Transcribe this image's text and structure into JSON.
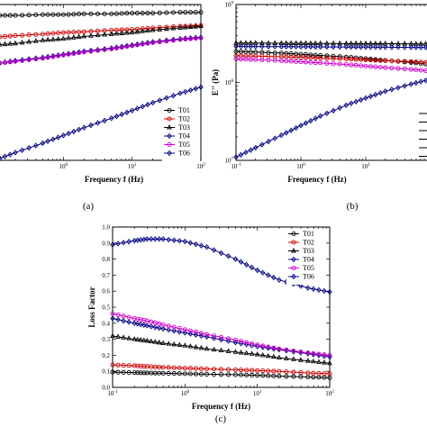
{
  "chart_data": [
    {
      "id": "a",
      "type": "line",
      "caption": "(a)",
      "xlabel": "Frequency f (Hz)",
      "ylabel": "",
      "x_scale": "log",
      "xlim": [
        0.1,
        100
      ],
      "xtick_labels": [
        {
          "base": "10",
          "exp": "0"
        },
        {
          "base": "10",
          "exp": "1"
        },
        {
          "base": "10",
          "exp": "2"
        }
      ],
      "x": [
        0.1,
        0.2,
        0.5,
        1,
        2,
        5,
        10,
        20,
        50,
        100
      ],
      "legend": "lower-right",
      "series": [
        {
          "name": "T01",
          "color": "#000000",
          "marker": "circle",
          "values": [
            0.93,
            0.93,
            0.935,
            0.935,
            0.94,
            0.94,
            0.945,
            0.945,
            0.95,
            0.95
          ]
        },
        {
          "name": "T02",
          "color": "#cc0000",
          "marker": "circle",
          "values": [
            0.79,
            0.8,
            0.81,
            0.82,
            0.825,
            0.835,
            0.84,
            0.85,
            0.86,
            0.865
          ]
        },
        {
          "name": "T03",
          "color": "#000000",
          "marker": "triangle",
          "values": [
            0.74,
            0.75,
            0.77,
            0.78,
            0.795,
            0.81,
            0.82,
            0.835,
            0.85,
            0.86
          ]
        },
        {
          "name": "T04",
          "color": "#000080",
          "marker": "diamond",
          "values": [
            0.62,
            0.64,
            0.66,
            0.68,
            0.7,
            0.72,
            0.74,
            0.76,
            0.78,
            0.79
          ]
        },
        {
          "name": "T05",
          "color": "#cc00cc",
          "marker": "circle",
          "values": [
            0.62,
            0.635,
            0.655,
            0.675,
            0.695,
            0.715,
            0.735,
            0.755,
            0.775,
            0.785
          ]
        },
        {
          "name": "T06",
          "color": "#000080",
          "marker": "diamond",
          "values": [
            0.0,
            0.05,
            0.11,
            0.16,
            0.21,
            0.27,
            0.32,
            0.37,
            0.43,
            0.47
          ]
        }
      ]
    },
    {
      "id": "b",
      "type": "line",
      "caption": "(b)",
      "xlabel": "Frequency f (Hz)",
      "ylabel": "E'' (Pa)",
      "x_scale": "log",
      "y_scale": "log",
      "xlim": [
        0.1,
        100
      ],
      "ylim": [
        10000000,
        1000000000
      ],
      "xtick_labels": [
        {
          "base": "10",
          "exp": "-1"
        },
        {
          "base": "10",
          "exp": "0"
        },
        {
          "base": "10",
          "exp": "1"
        }
      ],
      "ytick_labels": [
        {
          "base": "10",
          "exp": "7"
        },
        {
          "base": "10",
          "exp": "8"
        },
        {
          "base": "10",
          "exp": "9"
        }
      ],
      "x": [
        0.1,
        0.2,
        0.5,
        1,
        2,
        5,
        10,
        20,
        50,
        100
      ],
      "series": [
        {
          "color": "#000000",
          "marker": "circle",
          "values": [
            250000000,
            245000000,
            238000000,
            230000000,
            222000000,
            212000000,
            202000000,
            192000000,
            180000000,
            170000000
          ]
        },
        {
          "color": "#cc0000",
          "marker": "circle",
          "values": [
            220000000,
            218000000,
            214000000,
            210000000,
            205000000,
            200000000,
            195000000,
            190000000,
            185000000,
            180000000
          ]
        },
        {
          "color": "#000000",
          "marker": "triangle",
          "values": [
            320000000,
            320000000,
            318000000,
            318000000,
            316000000,
            315000000,
            315000000,
            314000000,
            313000000,
            312000000
          ]
        },
        {
          "color": "#000080",
          "marker": "diamond",
          "values": [
            290000000,
            289000000,
            288000000,
            287000000,
            286000000,
            285000000,
            284000000,
            283000000,
            282000000,
            281000000
          ]
        },
        {
          "color": "#cc00cc",
          "marker": "circle",
          "values": [
            200000000,
            196000000,
            190000000,
            184000000,
            178000000,
            170000000,
            162000000,
            155000000,
            147000000,
            140000000
          ]
        },
        {
          "color": "#000080",
          "marker": "diamond",
          "values": [
            11000000,
            14500000,
            21000000,
            28000000,
            37000000,
            51000000,
            63000000,
            77000000,
            95000000,
            110000000
          ]
        }
      ]
    },
    {
      "id": "c",
      "type": "line",
      "caption": "(c)",
      "xlabel": "Frequency f (Hz)",
      "ylabel": "Loss Factor",
      "x_scale": "log",
      "xlim": [
        0.1,
        100
      ],
      "ylim": [
        0.0,
        1.0
      ],
      "xtick_labels": [
        {
          "base": "10",
          "exp": "-1"
        },
        {
          "base": "10",
          "exp": "0"
        },
        {
          "base": "10",
          "exp": "1"
        },
        {
          "base": "10",
          "exp": "2"
        }
      ],
      "ytick_labels": [
        "0.0",
        "0.1",
        "0.2",
        "0.3",
        "0.4",
        "0.5",
        "0.6",
        "0.7",
        "0.8",
        "0.9",
        "1.0"
      ],
      "x": [
        0.1,
        0.2,
        0.3,
        0.5,
        1,
        2,
        5,
        10,
        20,
        50,
        100
      ],
      "legend": "top-right",
      "series": [
        {
          "name": "T01",
          "color": "#000000",
          "marker": "circle",
          "values": [
            0.095,
            0.092,
            0.09,
            0.088,
            0.085,
            0.082,
            0.079,
            0.075,
            0.07,
            0.065,
            0.06
          ]
        },
        {
          "name": "T02",
          "color": "#cc0000",
          "marker": "circle",
          "values": [
            0.14,
            0.135,
            0.13,
            0.125,
            0.12,
            0.115,
            0.11,
            0.105,
            0.1,
            0.09,
            0.085
          ]
        },
        {
          "name": "T03",
          "color": "#000000",
          "marker": "triangle",
          "values": [
            0.32,
            0.3,
            0.29,
            0.275,
            0.26,
            0.24,
            0.22,
            0.205,
            0.185,
            0.165,
            0.15
          ]
        },
        {
          "name": "T04",
          "color": "#000080",
          "marker": "diamond",
          "values": [
            0.43,
            0.4,
            0.385,
            0.365,
            0.34,
            0.315,
            0.28,
            0.255,
            0.235,
            0.21,
            0.19
          ]
        },
        {
          "name": "T05",
          "color": "#cc00cc",
          "marker": "circle",
          "values": [
            0.46,
            0.43,
            0.415,
            0.39,
            0.36,
            0.33,
            0.295,
            0.265,
            0.24,
            0.215,
            0.2
          ]
        },
        {
          "name": "T06",
          "color": "#000080",
          "marker": "diamond",
          "values": [
            0.89,
            0.915,
            0.925,
            0.925,
            0.91,
            0.875,
            0.8,
            0.73,
            0.67,
            0.62,
            0.595
          ]
        }
      ]
    }
  ]
}
